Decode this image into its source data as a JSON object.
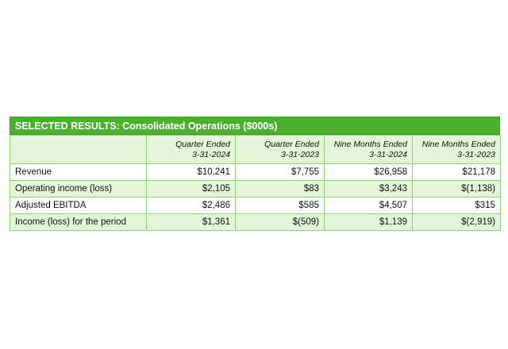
{
  "table": {
    "title": "SELECTED RESULTS:  Consolidated Operations ($000s)",
    "columns": [
      {
        "line1": "Quarter Ended",
        "line2": "3-31-2024"
      },
      {
        "line1": "Quarter Ended",
        "line2": "3-31-2023"
      },
      {
        "line1": "Nine Months Ended",
        "line2": "3-31-2024"
      },
      {
        "line1": "Nine Months Ended",
        "line2": "3-31-2023"
      }
    ],
    "rows": [
      {
        "label": "Revenue",
        "values": [
          "$10,241",
          "$7,755",
          "$26,958",
          "$21,178"
        ]
      },
      {
        "label": "Operating income (loss)",
        "values": [
          "$2,105",
          "$83",
          "$3,243",
          "$(1,138)"
        ]
      },
      {
        "label": "Adjusted EBITDA",
        "values": [
          "$2,486",
          "$585",
          "$4,507",
          "$315"
        ]
      },
      {
        "label": "Income (loss) for the period",
        "values": [
          "$1,361",
          "$(509)",
          "$1,139",
          "$(2,919)"
        ]
      }
    ],
    "colors": {
      "header_green": "#4caf2e",
      "row_shade": "#e3f4d9",
      "border": "#8fd27a"
    }
  }
}
